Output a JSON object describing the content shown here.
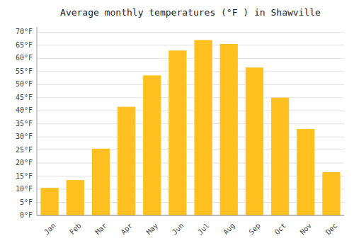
{
  "chart_data": {
    "type": "bar",
    "title": "Average monthly temperatures (°F ) in Shawville",
    "categories": [
      "Jan",
      "Feb",
      "Mar",
      "Apr",
      "May",
      "Jun",
      "Jul",
      "Aug",
      "Sep",
      "Oct",
      "Nov",
      "Dec"
    ],
    "values": [
      10.5,
      13.5,
      25.5,
      41.5,
      53.5,
      63.0,
      67.0,
      65.5,
      56.5,
      45.0,
      33.0,
      16.5
    ],
    "color": "#FFC020",
    "ylim": [
      0,
      72
    ],
    "yticks": [
      {
        "value": 0,
        "label": "0°F"
      },
      {
        "value": 5,
        "label": "5°F"
      },
      {
        "value": 10,
        "label": "10°F"
      },
      {
        "value": 15,
        "label": "15°F"
      },
      {
        "value": 20,
        "label": "20°F"
      },
      {
        "value": 25,
        "label": "25°F"
      },
      {
        "value": 30,
        "label": "30°F"
      },
      {
        "value": 35,
        "label": "35°F"
      },
      {
        "value": 40,
        "label": "40°F"
      },
      {
        "value": 45,
        "label": "45°F"
      },
      {
        "value": 50,
        "label": "50°F"
      },
      {
        "value": 55,
        "label": "55°F"
      },
      {
        "value": 60,
        "label": "60°F"
      },
      {
        "value": 65,
        "label": "65°F"
      },
      {
        "value": 70,
        "label": "70°F"
      }
    ],
    "grid": true
  }
}
